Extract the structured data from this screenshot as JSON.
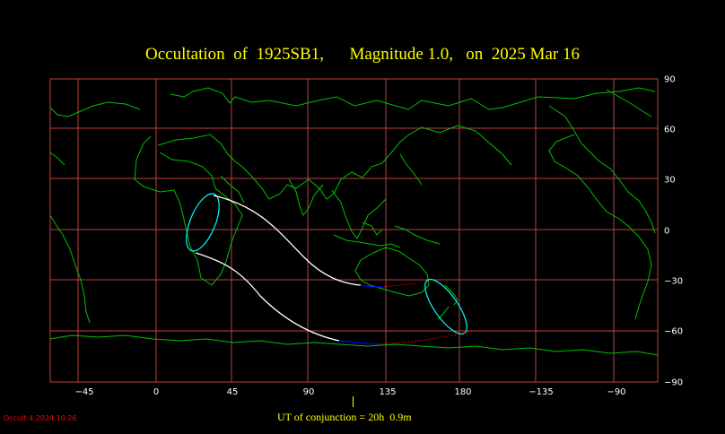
{
  "title": "Occultation  of  1925SB1,      Magnitude 1.0,   on  2025 Mar 16",
  "longitude_ticks": [
    "−45",
    "0",
    "45",
    "90",
    "135",
    "180",
    "−135",
    "−90"
  ],
  "latitude_ticks": [
    "90",
    "60",
    "30",
    "0",
    "−30",
    "−60",
    "−90"
  ],
  "conjunction_label": "UT of conjunction = 20h  0.9m",
  "version_label": "Occult 4.2024.10.26",
  "colors": {
    "background": "#000000",
    "title": "#ffff00",
    "grid": "#c04040",
    "coastline": "#00c000",
    "path_center": "#ffffff",
    "path_edge": "#00ffff",
    "path_daylight": "#0000ff",
    "path_below_horizon": "#ff0000",
    "version": "#ff0000"
  },
  "map": {
    "projection": "equirectangular",
    "lon_center": 120,
    "lon_range": [
      -60,
      300
    ],
    "lat_range": [
      -90,
      90
    ],
    "grid_step_deg": 30
  }
}
